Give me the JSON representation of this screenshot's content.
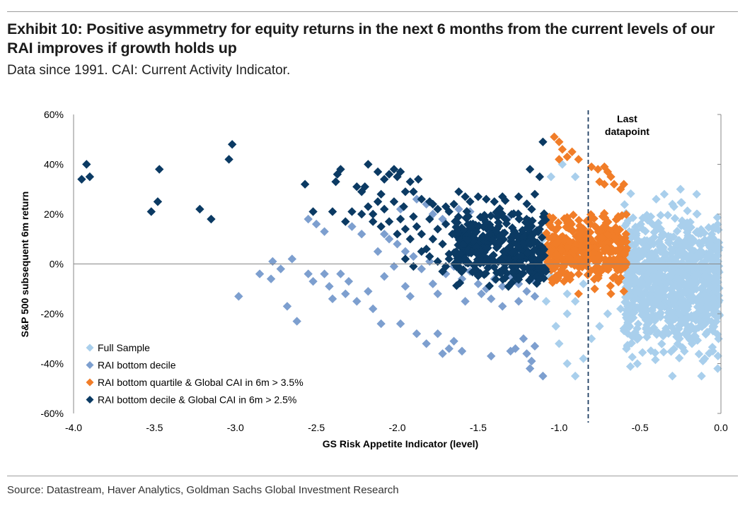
{
  "header": {
    "title": "Exhibit 10: Positive asymmetry for equity returns in the next 6 months from the current levels of our RAI improves if growth holds up",
    "subtitle": "Data since 1991. CAI: Current Activity Indicator."
  },
  "footer": {
    "source": "Source: Datastream, Haver Analytics, Goldman Sachs Global Investment Research"
  },
  "chart_data": {
    "type": "scatter",
    "xlabel": "GS Risk Appetite Indicator (level)",
    "ylabel": "S&P 500 subsequent 6m return",
    "xlim": [
      -4.0,
      0.0
    ],
    "ylim": [
      -60,
      60
    ],
    "x_ticks": [
      "-4.0",
      "-3.5",
      "-3.0",
      "-2.5",
      "-2.0",
      "-1.5",
      "-1.0",
      "-0.5",
      "0.0"
    ],
    "y_ticks": [
      "60%",
      "40%",
      "20%",
      "0%",
      "-20%",
      "-40%",
      "-60%"
    ],
    "x_tick_values": [
      -4.0,
      -3.5,
      -3.0,
      -2.5,
      -2.0,
      -1.5,
      -1.0,
      -0.5,
      0.0
    ],
    "y_tick_values": [
      60,
      40,
      20,
      0,
      -20,
      -40,
      -60
    ],
    "grid": false,
    "legend_position": "bottom-left",
    "reference_line": {
      "x": -0.82,
      "label_line1": "Last",
      "label_line2": "datapoint",
      "style": "dashed",
      "color": "#1f3f63"
    },
    "series": [
      {
        "name": "Full Sample",
        "color": "#a9cfec",
        "generated_cloud": {
          "x_range": [
            -0.6,
            -0.01
          ],
          "y_range": [
            -45,
            30
          ],
          "count": 900,
          "seed": 11
        },
        "points": [
          [
            -1.05,
            35
          ],
          [
            -0.98,
            40
          ],
          [
            -0.9,
            35
          ],
          [
            -0.95,
            -40
          ],
          [
            -0.9,
            -45
          ],
          [
            -0.85,
            -38
          ],
          [
            -0.8,
            -30
          ],
          [
            -0.75,
            -25
          ],
          [
            -0.7,
            -20
          ],
          [
            -0.62,
            -18
          ],
          [
            -0.55,
            -22
          ],
          [
            -1.02,
            -25
          ],
          [
            -1.0,
            -32
          ],
          [
            -0.95,
            -20
          ],
          [
            -0.05,
            -25
          ],
          [
            -0.05,
            -35
          ],
          [
            -0.02,
            -42
          ],
          [
            -0.1,
            -38
          ],
          [
            -0.3,
            -45
          ],
          [
            -0.12,
            -45
          ],
          [
            -0.35,
            28
          ],
          [
            -0.25,
            30
          ],
          [
            -0.15,
            28
          ],
          [
            -0.4,
            26
          ],
          [
            -1.08,
            -15
          ],
          [
            -1.05,
            -5
          ],
          [
            -1.1,
            10
          ],
          [
            -1.0,
            8
          ],
          [
            -0.95,
            -12
          ],
          [
            -0.9,
            -15
          ],
          [
            -0.88,
            5
          ],
          [
            -0.85,
            -8
          ]
        ]
      },
      {
        "name": "RAI bottom decile",
        "color": "#7d9fcf",
        "points": [
          [
            -2.98,
            -13
          ],
          [
            -2.85,
            -4
          ],
          [
            -2.77,
            1
          ],
          [
            -2.72,
            -2
          ],
          [
            -2.78,
            -6
          ],
          [
            -2.68,
            -17
          ],
          [
            -2.62,
            -23
          ],
          [
            -2.55,
            -4
          ],
          [
            -2.52,
            -7
          ],
          [
            -2.45,
            -4
          ],
          [
            -2.42,
            -9
          ],
          [
            -2.4,
            -14
          ],
          [
            -2.35,
            -4
          ],
          [
            -2.3,
            -7
          ],
          [
            -2.32,
            -12
          ],
          [
            -2.25,
            -15
          ],
          [
            -2.18,
            -11
          ],
          [
            -2.15,
            -18
          ],
          [
            -2.08,
            -5
          ],
          [
            -2.1,
            -24
          ],
          [
            -1.98,
            -24
          ],
          [
            -1.92,
            -13
          ],
          [
            -1.88,
            -28
          ],
          [
            -1.82,
            -32
          ],
          [
            -1.78,
            -8
          ],
          [
            -1.75,
            -28
          ],
          [
            -1.72,
            -36
          ],
          [
            -1.68,
            -34
          ],
          [
            -1.65,
            -31
          ],
          [
            -1.6,
            -35
          ],
          [
            -1.42,
            -37
          ],
          [
            -1.22,
            -30
          ],
          [
            -1.2,
            -36
          ],
          [
            -1.18,
            -42
          ],
          [
            -1.17,
            -39
          ],
          [
            -1.15,
            -33
          ],
          [
            -1.1,
            -45
          ],
          [
            -1.3,
            -35
          ],
          [
            -1.27,
            -34
          ],
          [
            -2.45,
            13
          ],
          [
            -2.5,
            16
          ],
          [
            -2.55,
            18
          ],
          [
            -2.28,
            15
          ],
          [
            -2.22,
            12
          ],
          [
            -2.05,
            10
          ],
          [
            -2.0,
            8
          ],
          [
            -1.95,
            5
          ],
          [
            -1.9,
            3
          ],
          [
            -1.85,
            -2
          ],
          [
            -1.8,
            1
          ],
          [
            -1.7,
            -4
          ],
          [
            -1.65,
            -1
          ],
          [
            -1.6,
            -6
          ],
          [
            -1.55,
            -3
          ],
          [
            -1.5,
            -8
          ],
          [
            -1.45,
            -10
          ],
          [
            -1.4,
            -6
          ],
          [
            -1.35,
            -9
          ],
          [
            -1.3,
            -5
          ],
          [
            -1.25,
            -8
          ],
          [
            -1.2,
            -11
          ],
          [
            -1.15,
            -7
          ],
          [
            -1.1,
            -3
          ],
          [
            -2.65,
            2
          ],
          [
            -2.12,
            5
          ],
          [
            -2.08,
            12
          ],
          [
            -1.98,
            22
          ],
          [
            -1.88,
            26
          ],
          [
            -1.82,
            24
          ],
          [
            -1.78,
            20
          ],
          [
            -1.72,
            18
          ],
          [
            -1.62,
            22
          ],
          [
            -1.55,
            21
          ],
          [
            -1.45,
            16
          ],
          [
            -1.38,
            20
          ],
          [
            -1.32,
            18
          ],
          [
            -1.28,
            12
          ],
          [
            -1.22,
            10
          ],
          [
            -1.18,
            14
          ],
          [
            -1.12,
            6
          ],
          [
            -1.08,
            -1
          ],
          [
            -2.02,
            -1
          ],
          [
            -1.95,
            -9
          ],
          [
            -1.75,
            -12
          ],
          [
            -1.58,
            -15
          ],
          [
            -1.48,
            -12
          ],
          [
            -1.42,
            -14
          ],
          [
            -1.35,
            -17
          ],
          [
            -1.25,
            -15
          ],
          [
            -1.15,
            -13
          ]
        ]
      },
      {
        "name": "RAI bottom quartile & Global CAI in 6m > 3.5%",
        "color": "#f17d28",
        "generated_cloud": {
          "x_range": [
            -1.08,
            -0.58
          ],
          "y_range": [
            -12,
            25
          ],
          "count": 360,
          "seed": 23
        },
        "points": [
          [
            -1.03,
            51
          ],
          [
            -1.0,
            49
          ],
          [
            -0.98,
            46
          ],
          [
            -0.95,
            43
          ],
          [
            -0.92,
            45
          ],
          [
            -1.0,
            42
          ],
          [
            -0.88,
            42
          ],
          [
            -0.8,
            39
          ],
          [
            -0.76,
            38
          ],
          [
            -0.72,
            39
          ],
          [
            -0.7,
            37
          ],
          [
            -0.68,
            35
          ],
          [
            -0.66,
            32
          ],
          [
            -0.72,
            32
          ],
          [
            -0.75,
            33
          ],
          [
            -0.62,
            30
          ],
          [
            -0.6,
            32
          ],
          [
            -0.88,
            -12
          ],
          [
            -0.78,
            -10
          ],
          [
            -0.68,
            -12
          ],
          [
            -0.6,
            -11
          ]
        ]
      },
      {
        "name": "RAI bottom decile & Global CAI in 6m > 2.5%",
        "color": "#0b3a63",
        "generated_cloud": {
          "x_range": [
            -1.65,
            -1.08
          ],
          "y_range": [
            -14,
            27
          ],
          "count": 380,
          "seed": 37
        },
        "points": [
          [
            -3.95,
            34
          ],
          [
            -3.92,
            40
          ],
          [
            -3.9,
            35
          ],
          [
            -3.47,
            38
          ],
          [
            -3.52,
            21
          ],
          [
            -3.48,
            25
          ],
          [
            -3.22,
            22
          ],
          [
            -3.15,
            18
          ],
          [
            -3.02,
            48
          ],
          [
            -3.04,
            42
          ],
          [
            -2.57,
            32
          ],
          [
            -2.52,
            21
          ],
          [
            -2.4,
            21
          ],
          [
            -2.37,
            36
          ],
          [
            -2.38,
            33
          ],
          [
            -2.35,
            38
          ],
          [
            -2.32,
            17
          ],
          [
            -2.28,
            21
          ],
          [
            -2.25,
            31
          ],
          [
            -2.22,
            29
          ],
          [
            -2.18,
            40
          ],
          [
            -2.2,
            31
          ],
          [
            -2.15,
            17
          ],
          [
            -2.12,
            37
          ],
          [
            -2.08,
            34
          ],
          [
            -2.05,
            36
          ],
          [
            -2.02,
            38
          ],
          [
            -2.0,
            35
          ],
          [
            -1.98,
            37
          ],
          [
            -1.95,
            29
          ],
          [
            -1.92,
            33
          ],
          [
            -1.9,
            29
          ],
          [
            -1.87,
            34
          ],
          [
            -1.85,
            26
          ],
          [
            -1.8,
            25
          ],
          [
            -1.78,
            24
          ],
          [
            -1.75,
            22
          ],
          [
            -1.7,
            23
          ],
          [
            -1.68,
            21
          ],
          [
            -1.65,
            24
          ],
          [
            -1.62,
            29
          ],
          [
            -1.58,
            27
          ],
          [
            -1.55,
            25
          ],
          [
            -1.5,
            27
          ],
          [
            -1.45,
            26
          ],
          [
            -1.4,
            25
          ],
          [
            -1.35,
            27
          ],
          [
            -1.25,
            27
          ],
          [
            -1.18,
            38
          ],
          [
            -1.1,
            49
          ],
          [
            -1.12,
            35
          ],
          [
            -1.15,
            28
          ],
          [
            -2.15,
            20
          ],
          [
            -2.1,
            15
          ],
          [
            -2.05,
            17
          ],
          [
            -2.0,
            12
          ],
          [
            -1.98,
            18
          ],
          [
            -1.95,
            14
          ],
          [
            -1.92,
            10
          ],
          [
            -1.9,
            19
          ],
          [
            -1.88,
            15
          ],
          [
            -1.85,
            12
          ],
          [
            -1.82,
            6
          ],
          [
            -1.8,
            18
          ],
          [
            -1.78,
            10
          ],
          [
            -1.75,
            14
          ],
          [
            -1.72,
            8
          ],
          [
            -1.7,
            16
          ],
          [
            -1.68,
            4
          ],
          [
            -1.66,
            12
          ],
          [
            -1.95,
            2
          ],
          [
            -1.9,
            -1
          ],
          [
            -1.85,
            5
          ],
          [
            -1.8,
            3
          ],
          [
            -1.75,
            1
          ],
          [
            -1.72,
            -3
          ],
          [
            -1.7,
            -1
          ],
          [
            -1.68,
            2
          ],
          [
            -2.08,
            22
          ],
          [
            -2.02,
            25
          ],
          [
            -1.96,
            23
          ],
          [
            -2.22,
            20
          ],
          [
            -2.18,
            23
          ],
          [
            -2.12,
            25
          ],
          [
            -2.1,
            28
          ]
        ]
      }
    ]
  }
}
